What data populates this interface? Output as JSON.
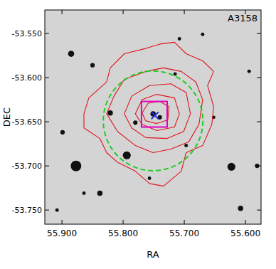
{
  "chart_data": {
    "type": "contour",
    "title": "A3158",
    "x_label": "RA",
    "y_label": "DEC",
    "xlim": [
      55.928,
      55.5745
    ],
    "ylim": [
      -53.766,
      -53.5234
    ],
    "xticks": [
      {
        "value": 55.9,
        "label": "55.900"
      },
      {
        "value": 55.8,
        "label": "55.800"
      },
      {
        "value": 55.7,
        "label": "55.700"
      },
      {
        "value": 55.6,
        "label": "55.600"
      }
    ],
    "yticks": [
      {
        "value": -53.75,
        "label": "-53.750"
      },
      {
        "value": -53.7,
        "label": "-53.700"
      },
      {
        "value": -53.65,
        "label": "-53.650"
      },
      {
        "value": -53.6,
        "label": "-53.600"
      },
      {
        "value": -53.55,
        "label": "-53.550"
      }
    ],
    "contours": [
      {
        "color": "#e0141c",
        "ra": [
          55.864,
          55.856,
          55.827,
          55.821,
          55.798,
          55.763,
          55.74,
          55.716,
          55.697,
          55.67,
          55.652,
          55.662,
          55.652,
          55.655,
          55.67,
          55.697,
          55.705,
          55.734,
          55.757,
          55.78,
          55.809,
          55.827,
          55.838,
          55.864
        ],
        "dec": [
          -53.641,
          -53.623,
          -53.605,
          -53.589,
          -53.573,
          -53.567,
          -53.562,
          -53.56,
          -53.573,
          -53.581,
          -53.593,
          -53.609,
          -53.633,
          -53.653,
          -53.677,
          -53.685,
          -53.706,
          -53.723,
          -53.72,
          -53.706,
          -53.696,
          -53.685,
          -53.669,
          -53.657
        ]
      },
      {
        "color": "#e0141c",
        "ra": [
          55.827,
          55.815,
          55.798,
          55.763,
          55.734,
          55.705,
          55.681,
          55.67,
          55.676,
          55.693,
          55.722,
          55.751,
          55.78,
          55.809
        ],
        "dec": [
          -53.641,
          -53.621,
          -53.602,
          -53.593,
          -53.589,
          -53.593,
          -53.605,
          -53.625,
          -53.653,
          -53.673,
          -53.681,
          -53.685,
          -53.677,
          -53.661
        ]
      },
      {
        "color": "#e0141c",
        "ra": [
          55.798,
          55.786,
          55.757,
          55.722,
          55.697,
          55.69,
          55.701,
          55.728,
          55.763,
          55.786
        ],
        "dec": [
          -53.641,
          -53.621,
          -53.609,
          -53.607,
          -53.617,
          -53.641,
          -53.661,
          -53.669,
          -53.668,
          -53.657
        ]
      },
      {
        "color": "#e0141c",
        "ra": [
          55.78,
          55.769,
          55.745,
          55.716,
          55.708,
          55.716,
          55.745,
          55.769
        ],
        "dec": [
          -53.641,
          -53.625,
          -53.619,
          -53.623,
          -53.641,
          -53.656,
          -53.66,
          -53.653
        ]
      },
      {
        "color": "#e0141c",
        "ra": [
          55.769,
          55.759,
          55.74,
          55.725,
          55.727,
          55.745,
          55.763
        ],
        "dec": [
          -53.64,
          -53.629,
          -53.627,
          -53.633,
          -53.648,
          -53.652,
          -53.649
        ]
      }
    ],
    "circle": {
      "ra": 55.751,
      "dec": -53.649,
      "ra_radius": 0.0814,
      "dec_radius": 0.0565,
      "color": "#22cc22",
      "line_style": "dashed"
    },
    "box": {
      "ra": [
        55.77,
        55.728
      ],
      "dec": [
        -53.656,
        -53.627
      ],
      "color": "#e000c8"
    },
    "center": {
      "ra": 55.748,
      "dec": -53.643,
      "color": "#2030e0",
      "marker": "x"
    },
    "sources": {
      "ra": [
        55.885,
        55.877,
        55.794,
        55.623,
        55.608,
        55.85,
        55.899,
        55.838,
        55.864,
        55.581,
        55.708,
        55.67,
        55.821,
        55.78,
        55.715,
        55.697,
        55.757,
        55.652,
        55.594,
        55.908,
        55.751,
        55.74
      ],
      "dec": [
        -53.573,
        -53.7,
        -53.688,
        -53.701,
        -53.748,
        -53.586,
        -53.662,
        -53.731,
        -53.731,
        -53.7,
        -53.556,
        -53.551,
        -53.64,
        -53.651,
        -53.596,
        -53.677,
        -53.714,
        -53.645,
        -53.593,
        -53.75,
        -53.641,
        -53.645
      ],
      "size": [
        0.0035,
        0.006,
        0.0045,
        0.0045,
        0.003,
        0.0025,
        0.0025,
        0.003,
        0.002,
        0.0025,
        0.002,
        0.002,
        0.003,
        0.0025,
        0.002,
        0.002,
        0.002,
        0.002,
        0.002,
        0.002,
        0.003,
        0.0025
      ]
    }
  }
}
